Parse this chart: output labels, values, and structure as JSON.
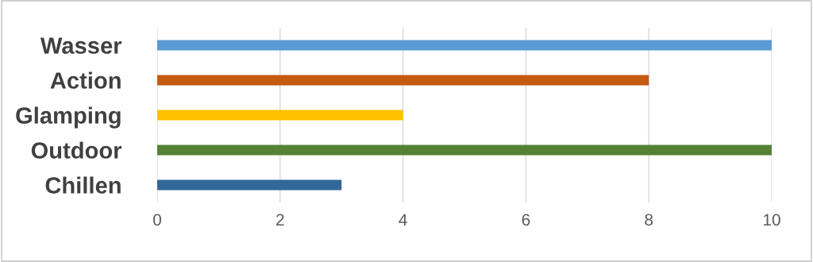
{
  "chart_data": {
    "type": "bar",
    "orientation": "horizontal",
    "categories": [
      "Wasser",
      "Action",
      "Glamping",
      "Outdoor",
      "Chillen"
    ],
    "values": [
      10,
      8,
      4,
      10,
      3
    ],
    "colors": [
      "#5b9bd5",
      "#c55a11",
      "#ffc000",
      "#548235",
      "#336699"
    ],
    "xlim": [
      0,
      10
    ],
    "xticks": [
      0,
      2,
      4,
      6,
      8,
      10
    ],
    "grid": "x",
    "legend": false
  }
}
